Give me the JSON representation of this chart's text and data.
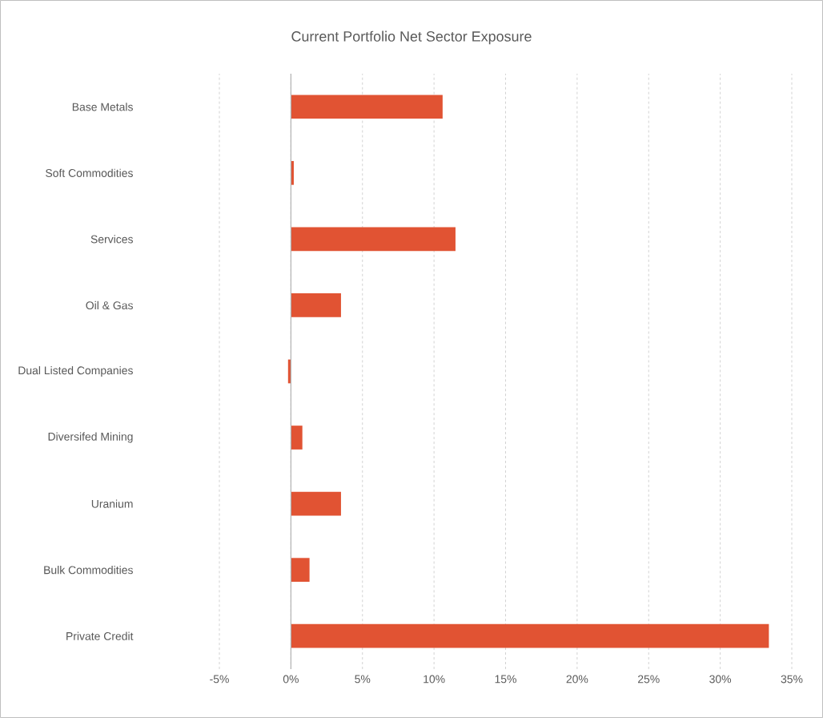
{
  "chart_data": {
    "type": "bar",
    "orientation": "horizontal",
    "title": "Current Portfolio Net Sector Exposure",
    "categories": [
      "Base Metals",
      "Soft Commodities",
      "Services",
      "Oil & Gas",
      "Dual Listed Companies",
      "Diversifed Mining",
      "Uranium",
      "Bulk Commodities",
      "Private Credit"
    ],
    "values": [
      10.6,
      0.2,
      11.5,
      3.5,
      -0.2,
      0.8,
      3.5,
      1.3,
      33.4
    ],
    "color": "#e15333",
    "xlim": [
      -5,
      35
    ],
    "xticks": [
      {
        "value": -5,
        "label": "-5%"
      },
      {
        "value": 0,
        "label": "0%"
      },
      {
        "value": 5,
        "label": "5%"
      },
      {
        "value": 10,
        "label": "10%"
      },
      {
        "value": 15,
        "label": "15%"
      },
      {
        "value": 20,
        "label": "20%"
      },
      {
        "value": 25,
        "label": "25%"
      },
      {
        "value": 30,
        "label": "30%"
      },
      {
        "value": 35,
        "label": "35%"
      }
    ],
    "grid": "x"
  }
}
